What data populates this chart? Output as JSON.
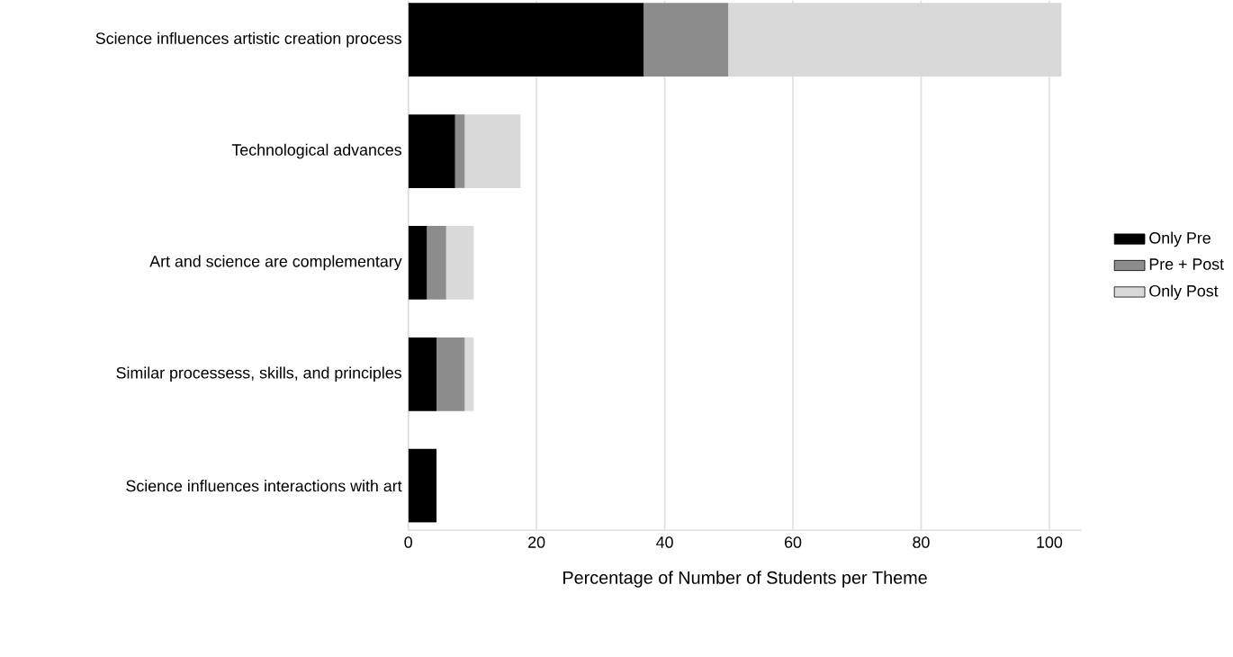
{
  "chart_data": {
    "type": "bar",
    "orientation": "horizontal",
    "stacked": true,
    "xlabel": "Percentage of Number of Students per Theme",
    "categories": [
      "Science influences artistic creation process",
      "Technological advances",
      "Art and science are complementary",
      "Similar processess, skills, and principles",
      "Science influences interactions with art"
    ],
    "series": [
      {
        "name": "Only Pre",
        "color": "#000000",
        "values": [
          36.7,
          7.3,
          2.9,
          4.4,
          4.4
        ]
      },
      {
        "name": "Pre + Post",
        "color": "#8c8c8c",
        "values": [
          13.2,
          1.5,
          3.0,
          4.4,
          0
        ]
      },
      {
        "name": "Only Post",
        "color": "#d9d9d9",
        "values": [
          52,
          8.7,
          4.3,
          1.4,
          0
        ]
      }
    ],
    "xlim": [
      0,
      105
    ],
    "xticks": [
      0,
      20,
      40,
      60,
      80,
      100
    ],
    "grid": "x",
    "legend": "right"
  }
}
